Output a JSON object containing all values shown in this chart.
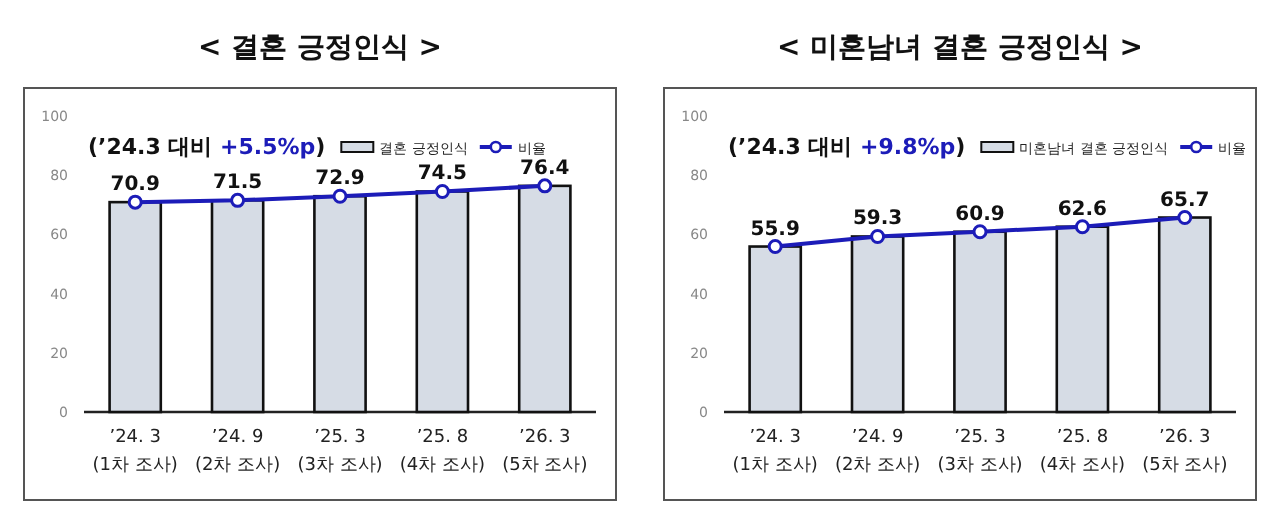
{
  "chart_data": [
    {
      "type": "bar",
      "title": "< 결혼 긍정인식 >",
      "categories": [
        "’24. 3\n(1차 조사)",
        "’24. 9\n(2차 조사)",
        "’25. 3\n(3차 조사)",
        "’25. 8\n(4차 조사)",
        "’26. 3\n(5차 조사)"
      ],
      "series": [
        {
          "name": "결혼 긍정인식",
          "type": "bar",
          "color": "#d6dce5",
          "values": [
            70.9,
            71.5,
            72.9,
            74.5,
            76.4
          ]
        },
        {
          "name": "비율",
          "type": "line",
          "color": "#1c1cb8",
          "values": [
            70.9,
            71.5,
            72.9,
            74.5,
            76.4
          ],
          "value_labels": [
            "70.9",
            "71.5",
            "72.9",
            "74.5",
            "76.4"
          ]
        }
      ],
      "ylim": [
        0,
        100
      ],
      "yticks": [
        0,
        20,
        40,
        60,
        80,
        100
      ],
      "legend": "top",
      "marker": "circle",
      "grid": false,
      "annotations": [
        "(’24.3 대비 +5.5%p)"
      ]
    },
    {
      "type": "bar",
      "title": "< 미혼남녀 결혼 긍정인식 >",
      "categories": [
        "’24. 3\n(1차 조사)",
        "’24. 9\n(2차 조사)",
        "’25. 3\n(3차 조사)",
        "’25. 8\n(4차 조사)",
        "’26. 3\n(5차 조사)"
      ],
      "series": [
        {
          "name": "미혼남녀 결혼 긍정인식",
          "type": "bar",
          "color": "#d6dce5",
          "values": [
            55.9,
            59.3,
            60.9,
            62.6,
            65.7
          ]
        },
        {
          "name": "비율",
          "type": "line",
          "color": "#1c1cb8",
          "values": [
            55.9,
            59.3,
            60.9,
            62.6,
            65.7
          ],
          "value_labels": [
            "55.9",
            "59.3",
            "60.9",
            "62.6",
            "65.7"
          ]
        }
      ],
      "ylim": [
        0,
        100
      ],
      "yticks": [
        0,
        20,
        40,
        60,
        80,
        100
      ],
      "legend": "top",
      "marker": "circle",
      "grid": false,
      "annotations": [
        "(’24.3 대비 +9.8%p)"
      ]
    }
  ]
}
